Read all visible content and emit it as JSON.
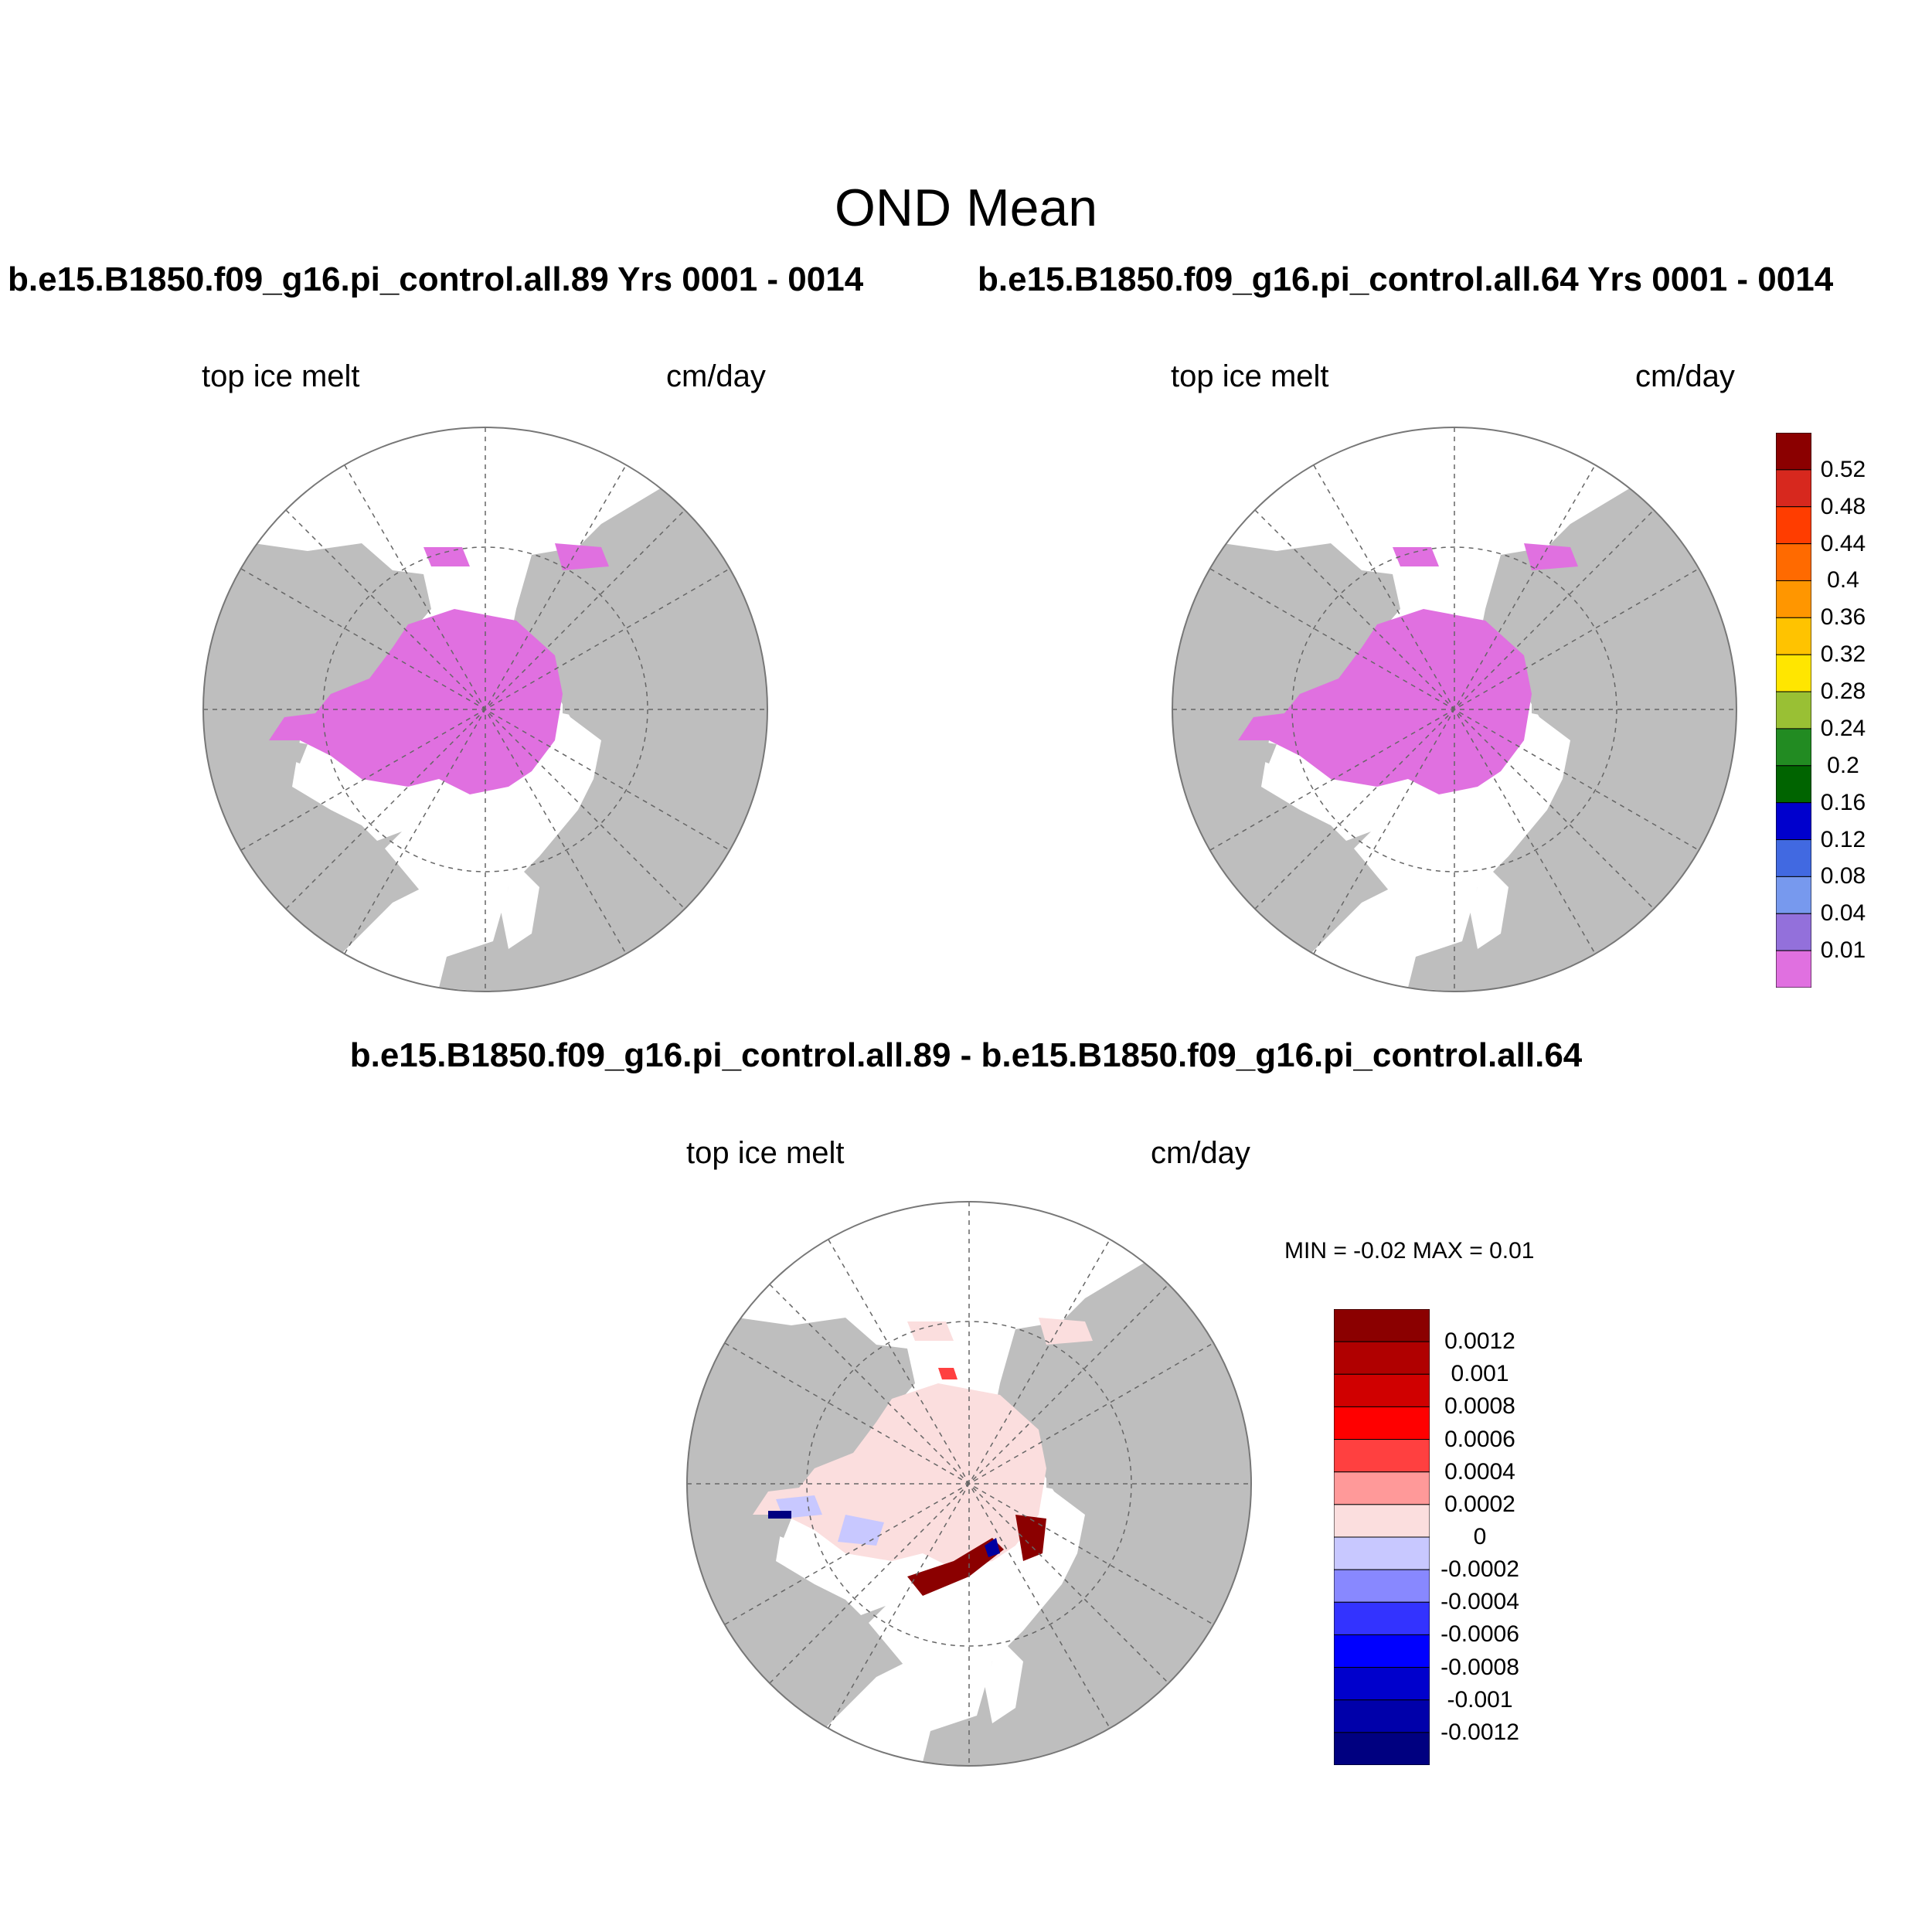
{
  "title": "OND Mean",
  "panels": [
    {
      "title": "b.e15.B1850.f09_g16.pi_control.all.89  Yrs 0001 - 0014",
      "left_label": "top ice melt",
      "right_label": "cm/day"
    },
    {
      "title": "b.e15.B1850.f09_g16.pi_control.all.64  Yrs 0001 - 0014",
      "left_label": "top ice melt",
      "right_label": "cm/day"
    }
  ],
  "difference_panel": {
    "title": "b.e15.B1850.f09_g16.pi_control.all.89 - b.e15.B1850.f09_g16.pi_control.all.64",
    "left_label": "top ice melt",
    "right_label": "cm/day",
    "minmax": "MIN =  -0.02 MAX =   0.01"
  },
  "colors": {
    "land": "#bebebe",
    "ocean": "#ffffff",
    "ice_melt": "#e070e0",
    "diff_positive_light": "#fbdede",
    "diff_negative_light": "#c8c8ff",
    "diff_positive_dark": "#8b0000",
    "diff_negative_dark": "#0000a0"
  },
  "colorbar_main": {
    "labels": [
      "0.52",
      "0.48",
      "0.44",
      "0.4",
      "0.36",
      "0.32",
      "0.28",
      "0.24",
      "0.2",
      "0.16",
      "0.12",
      "0.08",
      "0.04",
      "0.01"
    ],
    "colors": [
      "#8b0000",
      "#d7281e",
      "#ff3d00",
      "#ff6a00",
      "#ff9600",
      "#ffc300",
      "#ffe600",
      "#99c034",
      "#228b22",
      "#006400",
      "#0000cd",
      "#4169e1",
      "#7799ee",
      "#9370db",
      "#e070e0"
    ]
  },
  "colorbar_diff": {
    "labels": [
      "0.0012",
      "0.001",
      "0.0008",
      "0.0006",
      "0.0004",
      "0.0002",
      "0",
      "-0.0002",
      "-0.0004",
      "-0.0006",
      "-0.0008",
      "-0.001",
      "-0.0012"
    ],
    "colors": [
      "#8b0000",
      "#b00000",
      "#d00000",
      "#ff0000",
      "#ff4040",
      "#ff9999",
      "#fbdede",
      "#c8c8ff",
      "#8888ff",
      "#3333ff",
      "#0000ff",
      "#0000cc",
      "#0000aa",
      "#000080"
    ]
  }
}
